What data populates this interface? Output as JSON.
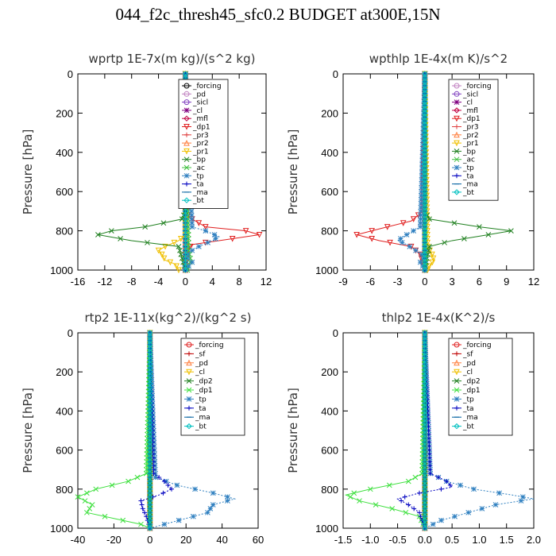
{
  "title": "044_f2c_thresh45_sfc0.2  BUDGET at300E,15N",
  "chart_data": [
    {
      "type": "line",
      "title": "wprtp   1E-7x(m kg)/(s^2 kg)",
      "ylabel": "Pressure  [hPa]",
      "xlim": [
        -16,
        12
      ],
      "xticks": [
        "-16",
        "-12",
        "-8",
        "-4",
        "0",
        "4",
        "8",
        "12"
      ],
      "ylim": [
        0,
        1000
      ],
      "yticks": [
        "0",
        "200",
        "400",
        "600",
        "800",
        "1000"
      ],
      "legend_position": "top-right",
      "series": [
        {
          "name": "_forcing",
          "color": "#000000",
          "marker": "circle",
          "p": [
            0,
            100,
            200,
            300,
            400,
            500,
            600,
            700,
            800,
            900,
            1000
          ],
          "x": [
            0,
            0,
            0,
            0,
            0,
            0,
            0,
            0,
            0,
            0,
            0
          ]
        },
        {
          "name": "_pd",
          "color": "#c080c0",
          "marker": "circle",
          "p": [
            0,
            200,
            400,
            600,
            800,
            1000
          ],
          "x": [
            0,
            0,
            0,
            0,
            0,
            0
          ]
        },
        {
          "name": "_sicl",
          "color": "#8040c0",
          "marker": "circle",
          "p": [
            0,
            200,
            400,
            600,
            800,
            1000
          ],
          "x": [
            0,
            0,
            0,
            0,
            0,
            0
          ]
        },
        {
          "name": "_cl",
          "color": "#800080",
          "marker": "star",
          "p": [
            0,
            200,
            400,
            600,
            800,
            1000
          ],
          "x": [
            0,
            0,
            0,
            0,
            0,
            0
          ]
        },
        {
          "name": "_mfl",
          "color": "#c00040",
          "marker": "diamond",
          "p": [
            0,
            200,
            400,
            600,
            800,
            1000
          ],
          "x": [
            0,
            0,
            0,
            0,
            0,
            0
          ]
        },
        {
          "name": "_dp1",
          "color": "#e02020",
          "marker": "triangle-down",
          "p": [
            0,
            680,
            730,
            780,
            800,
            820,
            845,
            870,
            900,
            950,
            1000
          ],
          "x": [
            0,
            0,
            0.5,
            3,
            9,
            11,
            6,
            1,
            0.3,
            0.1,
            0
          ]
        },
        {
          "name": "_pr3",
          "color": "#e04040",
          "marker": "plus",
          "p": [
            0,
            1000
          ],
          "x": [
            0,
            0
          ]
        },
        {
          "name": "_pr2",
          "color": "#ff8040",
          "marker": "triangle-up",
          "p": [
            0,
            1000
          ],
          "x": [
            0,
            0
          ]
        },
        {
          "name": "_pr1",
          "color": "#f0c000",
          "marker": "triangle-down",
          "p": [
            0,
            820,
            850,
            880,
            900,
            920,
            950,
            970,
            1000
          ],
          "x": [
            0,
            0,
            -1,
            -3,
            -4,
            -3.5,
            -3,
            -1.5,
            -1
          ]
        },
        {
          "name": "_bp",
          "color": "#208020",
          "marker": "x",
          "p": [
            0,
            700,
            740,
            780,
            800,
            820,
            850,
            880,
            1000
          ],
          "x": [
            0,
            0,
            -0.5,
            -6,
            -11,
            -13,
            -8,
            -1,
            0
          ]
        },
        {
          "name": "_ac",
          "color": "#40c040",
          "marker": "x",
          "p": [
            0,
            900,
            950,
            1000
          ],
          "x": [
            0,
            0.5,
            0.8,
            0.3
          ]
        },
        {
          "name": "_tp",
          "color": "#3080c0",
          "marker": "asterisk",
          "p": [
            0,
            780,
            800,
            830,
            850,
            880,
            900,
            930,
            960,
            1000
          ],
          "x": [
            0,
            1,
            3,
            5,
            4,
            2,
            1,
            0,
            1,
            0
          ]
        },
        {
          "name": "_ta",
          "color": "#0000c0",
          "marker": "plus",
          "p": [
            0,
            1000
          ],
          "x": [
            0,
            0
          ]
        },
        {
          "name": "_ma",
          "color": "#0060a0",
          "marker": "dash",
          "p": [
            0,
            1000
          ],
          "x": [
            0,
            0
          ]
        },
        {
          "name": "_bt",
          "color": "#00c0c0",
          "marker": "diamond",
          "p": [
            0,
            1000
          ],
          "x": [
            0,
            0
          ]
        }
      ]
    },
    {
      "type": "line",
      "title": "wpthlp   1E-4x(m K)/s^2",
      "ylabel": "Pressure  [hPa]",
      "xlim": [
        -9,
        12
      ],
      "xticks": [
        "-9",
        "-6",
        "-3",
        "0",
        "3",
        "6",
        "9",
        "12"
      ],
      "ylim": [
        0,
        1000
      ],
      "yticks": [
        "0",
        "200",
        "400",
        "600",
        "800",
        "1000"
      ],
      "legend_position": "top-right",
      "series": [
        {
          "name": "_forcing",
          "color": "#c080c0",
          "marker": "circle",
          "p": [
            0,
            1000
          ],
          "x": [
            0,
            0
          ]
        },
        {
          "name": "_sicl",
          "color": "#8040c0",
          "marker": "circle",
          "p": [
            0,
            1000
          ],
          "x": [
            0,
            0
          ]
        },
        {
          "name": "_cl",
          "color": "#800080",
          "marker": "star",
          "p": [
            0,
            1000
          ],
          "x": [
            0,
            0
          ]
        },
        {
          "name": "_mfl",
          "color": "#c00040",
          "marker": "diamond",
          "p": [
            0,
            1000
          ],
          "x": [
            0,
            0
          ]
        },
        {
          "name": "_dp1",
          "color": "#e02020",
          "marker": "triangle-down",
          "p": [
            0,
            700,
            750,
            790,
            820,
            850,
            880,
            920,
            1000
          ],
          "x": [
            0,
            -0.2,
            -1.5,
            -5,
            -7.5,
            -5,
            -1.5,
            -0.5,
            0
          ]
        },
        {
          "name": "_pr3",
          "color": "#e04040",
          "marker": "plus",
          "p": [
            0,
            1000
          ],
          "x": [
            0,
            0
          ]
        },
        {
          "name": "_pr2",
          "color": "#ff8040",
          "marker": "triangle-up",
          "p": [
            0,
            1000
          ],
          "x": [
            0,
            0
          ]
        },
        {
          "name": "_pr1",
          "color": "#f0c000",
          "marker": "triangle-down",
          "p": [
            0,
            880,
            920,
            950,
            980,
            1000
          ],
          "x": [
            0,
            0.3,
            0.8,
            1,
            0.5,
            0.3
          ]
        },
        {
          "name": "_bp",
          "color": "#208020",
          "marker": "x",
          "p": [
            0,
            700,
            740,
            780,
            800,
            820,
            850,
            880,
            1000
          ],
          "x": [
            0,
            0,
            0.5,
            6,
            9.5,
            7,
            3,
            0.5,
            0
          ]
        },
        {
          "name": "_ac",
          "color": "#40c040",
          "marker": "x",
          "p": [
            0,
            1000
          ],
          "x": [
            0,
            0
          ]
        },
        {
          "name": "_tp",
          "color": "#3080c0",
          "marker": "asterisk",
          "p": [
            0,
            780,
            820,
            850,
            870,
            900,
            930,
            960,
            1000
          ],
          "x": [
            0,
            -0.5,
            -2,
            -3,
            -2,
            -1,
            0,
            -0.5,
            0
          ]
        },
        {
          "name": "_ta",
          "color": "#0000c0",
          "marker": "plus",
          "p": [
            0,
            1000
          ],
          "x": [
            0,
            0
          ]
        },
        {
          "name": "_ma",
          "color": "#0060a0",
          "marker": "dash",
          "p": [
            0,
            1000
          ],
          "x": [
            0,
            0
          ]
        },
        {
          "name": "_bt",
          "color": "#00c0c0",
          "marker": "diamond",
          "p": [
            0,
            1000
          ],
          "x": [
            0,
            0
          ]
        }
      ]
    },
    {
      "type": "line",
      "title": "rtp2   1E-11x(kg^2)/(kg^2 s)",
      "ylabel": "Pressure  [hPa]",
      "xlim": [
        -40,
        60
      ],
      "xticks": [
        "-40",
        "-20",
        "0",
        "20",
        "40",
        "60"
      ],
      "ylim": [
        0,
        1000
      ],
      "yticks": [
        "0",
        "200",
        "400",
        "600",
        "800",
        "1000"
      ],
      "legend_position": "top-right",
      "series": [
        {
          "name": "_forcing",
          "color": "#e02020",
          "marker": "circle",
          "p": [
            0,
            100,
            200,
            300,
            400,
            500,
            600,
            700,
            800,
            900,
            1000
          ],
          "x": [
            0,
            0,
            0,
            0,
            0,
            0,
            0,
            0,
            0,
            0,
            0
          ]
        },
        {
          "name": "_sf",
          "color": "#c00000",
          "marker": "plus",
          "p": [
            0,
            1000
          ],
          "x": [
            0,
            0
          ]
        },
        {
          "name": "_pd",
          "color": "#ff8040",
          "marker": "triangle-up",
          "p": [
            0,
            1000
          ],
          "x": [
            0,
            0
          ]
        },
        {
          "name": "_cl",
          "color": "#f0c000",
          "marker": "triangle-down",
          "p": [
            0,
            1000
          ],
          "x": [
            0,
            0
          ]
        },
        {
          "name": "_dp2",
          "color": "#208020",
          "marker": "x",
          "p": [
            0,
            1000
          ],
          "x": [
            0,
            0
          ]
        },
        {
          "name": "_dp1",
          "color": "#40e040",
          "marker": "x",
          "p": [
            0,
            720,
            760,
            800,
            840,
            880,
            920,
            950,
            980,
            1000
          ],
          "x": [
            0,
            -2,
            -12,
            -30,
            -40,
            -32,
            -35,
            -20,
            -5,
            0
          ]
        },
        {
          "name": "_tp",
          "color": "#3080c0",
          "marker": "asterisk",
          "p": [
            0,
            740,
            780,
            820,
            850,
            880,
            920,
            950,
            980,
            1000
          ],
          "x": [
            0,
            3,
            15,
            35,
            47,
            35,
            32,
            20,
            8,
            0
          ]
        },
        {
          "name": "_ta",
          "color": "#0000c0",
          "marker": "plus",
          "p": [
            0,
            720,
            760,
            800,
            830,
            860,
            900,
            940,
            1000
          ],
          "x": [
            0,
            2,
            8,
            12,
            5,
            -5,
            -4,
            -2,
            0
          ]
        },
        {
          "name": "_ma",
          "color": "#0060a0",
          "marker": "dash",
          "p": [
            0,
            1000
          ],
          "x": [
            0,
            0
          ]
        },
        {
          "name": "_bt",
          "color": "#00c0c0",
          "marker": "diamond",
          "p": [
            0,
            1000
          ],
          "x": [
            0,
            0
          ]
        }
      ]
    },
    {
      "type": "line",
      "title": "thlp2   1E-4x(K^2)/s",
      "ylabel": "Pressure  [hPa]",
      "xlim": [
        -1.5,
        2.0
      ],
      "xticks": [
        "-1.5",
        "-1.0",
        "-0.5",
        "0.0",
        "0.5",
        "1.0",
        "1.5",
        "2.0"
      ],
      "ylim": [
        0,
        1000
      ],
      "yticks": [
        "0",
        "200",
        "400",
        "600",
        "800",
        "1000"
      ],
      "legend_position": "top-right",
      "series": [
        {
          "name": "_forcing",
          "color": "#e02020",
          "marker": "circle",
          "p": [
            0,
            100,
            200,
            300,
            400,
            500,
            600,
            700,
            800,
            900,
            1000
          ],
          "x": [
            0,
            0,
            0,
            0,
            0,
            0,
            0,
            0,
            0,
            0,
            0
          ]
        },
        {
          "name": "_sf",
          "color": "#c00000",
          "marker": "plus",
          "p": [
            0,
            1000
          ],
          "x": [
            0,
            0
          ]
        },
        {
          "name": "_pd",
          "color": "#ff8040",
          "marker": "triangle-up",
          "p": [
            0,
            1000
          ],
          "x": [
            0,
            0
          ]
        },
        {
          "name": "_cl",
          "color": "#f0c000",
          "marker": "triangle-down",
          "p": [
            0,
            1000
          ],
          "x": [
            0,
            0
          ]
        },
        {
          "name": "_dp2",
          "color": "#208020",
          "marker": "x",
          "p": [
            0,
            1000
          ],
          "x": [
            0,
            0
          ]
        },
        {
          "name": "_dp1",
          "color": "#40e040",
          "marker": "x",
          "p": [
            0,
            720,
            760,
            800,
            830,
            860,
            900,
            940,
            1000
          ],
          "x": [
            0,
            -0.05,
            -0.3,
            -1.0,
            -1.45,
            -1.2,
            -0.6,
            -0.1,
            0
          ]
        },
        {
          "name": "_tp",
          "color": "#3080c0",
          "marker": "asterisk",
          "p": [
            0,
            720,
            760,
            800,
            830,
            850,
            880,
            920,
            960,
            1000
          ],
          "x": [
            0,
            0.1,
            0.4,
            0.9,
            1.6,
            2.0,
            1.3,
            0.8,
            0.3,
            0
          ]
        },
        {
          "name": "_ta",
          "color": "#0000c0",
          "marker": "plus",
          "p": [
            0,
            720,
            760,
            790,
            820,
            850,
            880,
            920,
            1000
          ],
          "x": [
            0,
            0.1,
            0.4,
            0.5,
            -0.1,
            -0.5,
            -0.3,
            -0.1,
            0
          ]
        },
        {
          "name": "_ma",
          "color": "#0060a0",
          "marker": "dash",
          "p": [
            0,
            1000
          ],
          "x": [
            0,
            0
          ]
        },
        {
          "name": "_bt",
          "color": "#00c0c0",
          "marker": "diamond",
          "p": [
            0,
            1000
          ],
          "x": [
            0,
            0
          ]
        }
      ]
    }
  ]
}
